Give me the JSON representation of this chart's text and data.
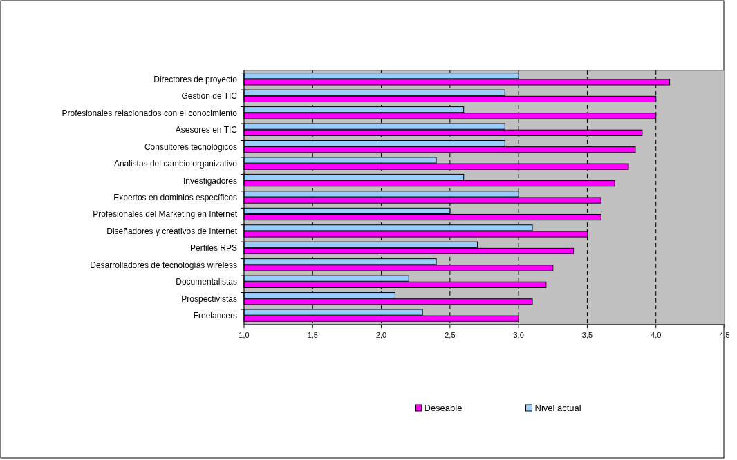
{
  "chart_data": {
    "type": "bar",
    "orientation": "horizontal",
    "categories": [
      "Directores de proyecto",
      "Gestión de TIC",
      "Profesionales relacionados con el conocimiento",
      "Asesores en TIC",
      "Consultores tecnológicos",
      "Analistas del cambio organizativo",
      "Investigadores",
      "Expertos en dominios específicos",
      "Profesionales del Marketing en Internet",
      "Diseñadores y creativos de Internet",
      "Perfiles RPS",
      "Desarrolladores de tecnologías wireless",
      "Documentalistas",
      "Prospectivistas",
      "Freelancers"
    ],
    "series": [
      {
        "name": "Deseable",
        "color": "#ff00ff",
        "values": [
          4.1,
          4.0,
          4.0,
          3.9,
          3.85,
          3.8,
          3.7,
          3.6,
          3.6,
          3.5,
          3.4,
          3.25,
          3.2,
          3.1,
          3.0
        ]
      },
      {
        "name": "Nivel actual",
        "color": "#99ccff",
        "values": [
          3.0,
          2.9,
          2.6,
          2.9,
          2.9,
          2.4,
          2.6,
          3.0,
          2.5,
          3.1,
          2.7,
          2.4,
          2.2,
          2.1,
          2.3
        ]
      }
    ],
    "xlim": [
      1,
      4.5
    ],
    "xticks": [
      {
        "value": 1,
        "label": "1,0"
      },
      {
        "value": 1.5,
        "label": "1,5"
      },
      {
        "value": 2,
        "label": "2,0"
      },
      {
        "value": 2.5,
        "label": "2,5"
      },
      {
        "value": 3,
        "label": "3,0"
      },
      {
        "value": 3.5,
        "label": "3,5"
      },
      {
        "value": 4,
        "label": "4,0"
      },
      {
        "value": 4.5,
        "label": "4,5"
      }
    ],
    "grid": "x",
    "legend": "bottom"
  }
}
